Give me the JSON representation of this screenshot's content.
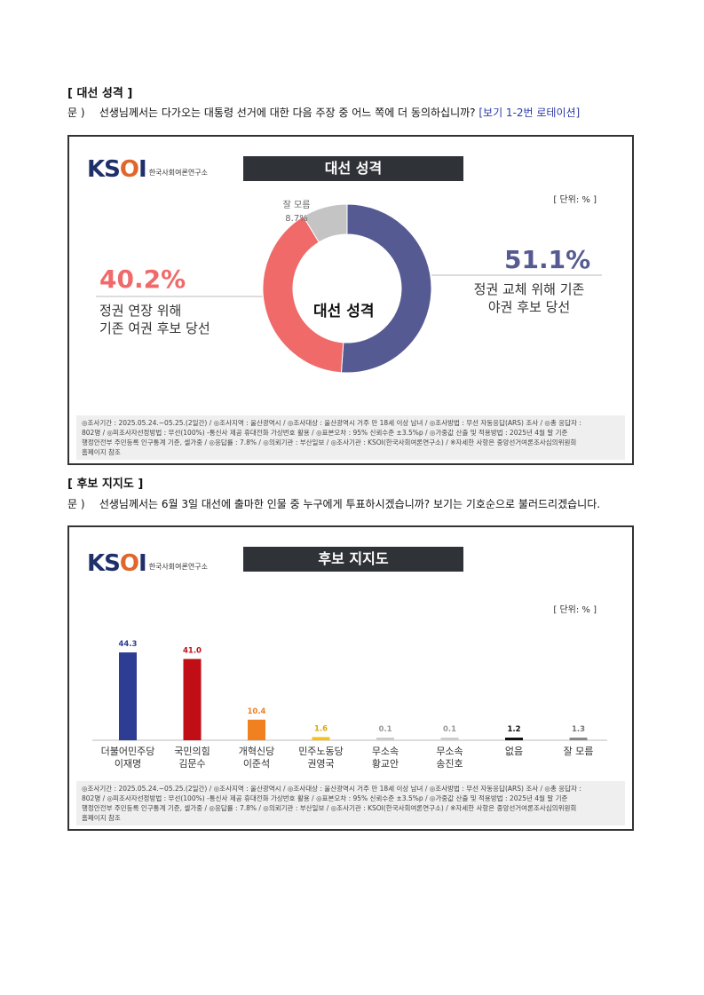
{
  "section1": {
    "title": "[ 대선 성격 ]",
    "q_prefix": "문 )",
    "q_text": "선생님께서는 다가오는 대통령 선거에 대한 다음 주장 중 어느 쪽에 더 동의하십니까?",
    "q_note": "[보기 1-2번 로테이션]"
  },
  "section2": {
    "title": "[ 후보 지지도 ]",
    "q_prefix": "문 )",
    "q_text": "선생님께서는 6월 3일 대선에 출마한 인물 중 누구에게 투표하시겠습니까? 보기는 기호순으로 불러드리겠습니다."
  },
  "logo": {
    "mark_k": "K",
    "mark_s": "S",
    "mark_o": "O",
    "mark_i": "I",
    "sub": "한국사회여론연구소"
  },
  "chart1_title": "대선 성격",
  "chart2_title": "후보 지지도",
  "unit": "[ 단위: % ]",
  "footnote": {
    "line1": "◎조사기간 : 2025.05.24.~05.25.(2일간) / ◎조사지역 : 울산광역시 / ◎조사대상 : 울산광역시 거주 만 18세 이상 남녀 / ◎조사방법 : 무선 자동응답(ARS) 조사 / ◎총 응답자 :",
    "line2": "802명 / ◎피조사자선정방법 : 무선(100%) -통신사 제공 휴대전화 가상번호 활용 / ◎표본오차 : 95% 신뢰수준 ±3.5%p / ◎가중값 산출 및 적용방법 : 2025년 4월 말 기준",
    "line3": "행정안전부 주민등록 인구통계 기준, 셀가중 / ◎응답률 : 7.8% / ◎의뢰기관 : 부산일보 / ◎조사기관 : KSOI(한국사회여론연구소) / ※자세한 사항은 중앙선거여론조사심의위원회",
    "line4": "홈페이지 참조"
  },
  "chart_data": [
    {
      "type": "pie",
      "title": "대선 성격",
      "center_label": "대선 성격",
      "categories": [
        "정권 교체 위해 기존 야권 후보 당선",
        "정권 연장 위해 기존 여권 후보 당선",
        "잘 모름"
      ],
      "values": [
        51.1,
        40.2,
        8.7
      ],
      "labels": {
        "change_pct": "51.1%",
        "change_line1": "정권 교체 위해 기존",
        "change_line2": "야권 후보 당선",
        "extend_pct": "40.2%",
        "extend_line1": "정권 연장 위해",
        "extend_line2": "기존 여권 후보 당선",
        "dk_name": "잘 모름",
        "dk_pct": "8.7%"
      },
      "colors": [
        "#555a92",
        "#f06a6a",
        "#c4c4c4"
      ]
    },
    {
      "type": "bar",
      "title": "후보 지지도",
      "categories": [
        [
          "더불어민주당",
          "이재명"
        ],
        [
          "국민의힘",
          "김문수"
        ],
        [
          "개혁신당",
          "이준석"
        ],
        [
          "민주노동당",
          "권영국"
        ],
        [
          "무소속",
          "황교안"
        ],
        [
          "무소속",
          "송진호"
        ],
        [
          "없음",
          ""
        ],
        [
          "잘 모름",
          ""
        ]
      ],
      "values": [
        44.3,
        41.0,
        10.4,
        1.6,
        0.1,
        0.1,
        1.2,
        1.3
      ],
      "value_labels": [
        "44.3",
        "41.0",
        "10.4",
        "1.6",
        "0.1",
        "0.1",
        "1.2",
        "1.3"
      ],
      "colors": [
        "#2e3d94",
        "#c10d16",
        "#f08020",
        "#f2c21a",
        "#cccccc",
        "#cccccc",
        "#111111",
        "#888888"
      ],
      "label_colors": [
        "#2e3d94",
        "#c10d16",
        "#f08020",
        "#d9a800",
        "#999999",
        "#999999",
        "#111111",
        "#777777"
      ],
      "ylim": [
        0,
        50
      ]
    }
  ]
}
